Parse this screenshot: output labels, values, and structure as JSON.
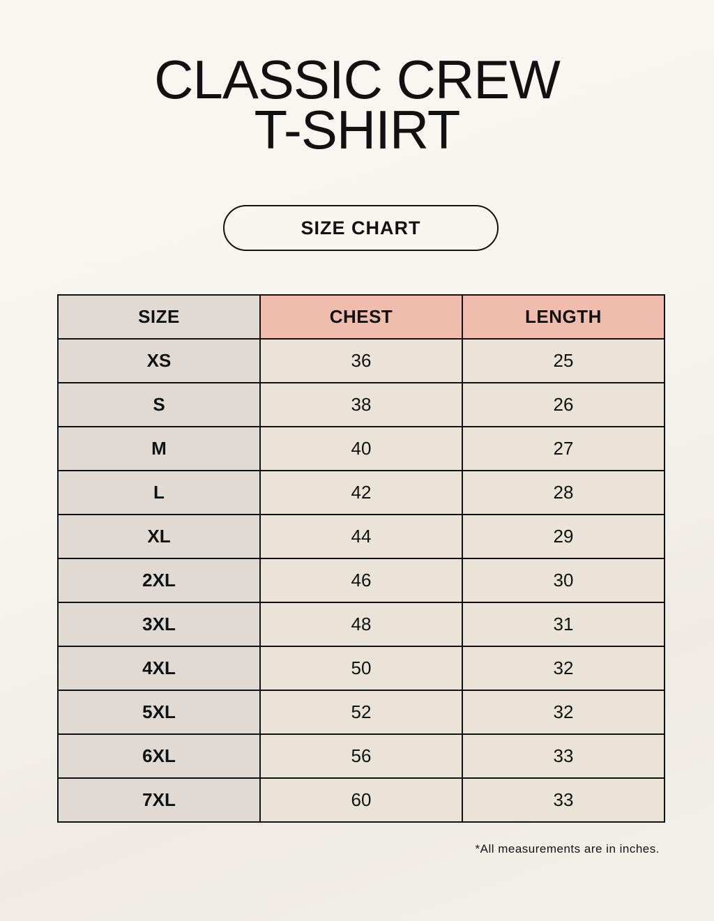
{
  "title": {
    "line1": "CLASSIC CREW",
    "line2": "T-SHIRT"
  },
  "badge": "SIZE CHART",
  "table": {
    "headers": [
      "SIZE",
      "CHEST",
      "LENGTH"
    ],
    "rows": [
      [
        "XS",
        "36",
        "25"
      ],
      [
        "S",
        "38",
        "26"
      ],
      [
        "M",
        "40",
        "27"
      ],
      [
        "L",
        "42",
        "28"
      ],
      [
        "XL",
        "44",
        "29"
      ],
      [
        "2XL",
        "46",
        "30"
      ],
      [
        "3XL",
        "48",
        "31"
      ],
      [
        "4XL",
        "50",
        "32"
      ],
      [
        "5XL",
        "52",
        "32"
      ],
      [
        "6XL",
        "56",
        "33"
      ],
      [
        "7XL",
        "60",
        "33"
      ]
    ]
  },
  "note": "*All measurements are in inches.",
  "colors": {
    "header_accent": "#efbcae",
    "size_column": "#e1dad4",
    "cell": "#ebe2d8"
  }
}
